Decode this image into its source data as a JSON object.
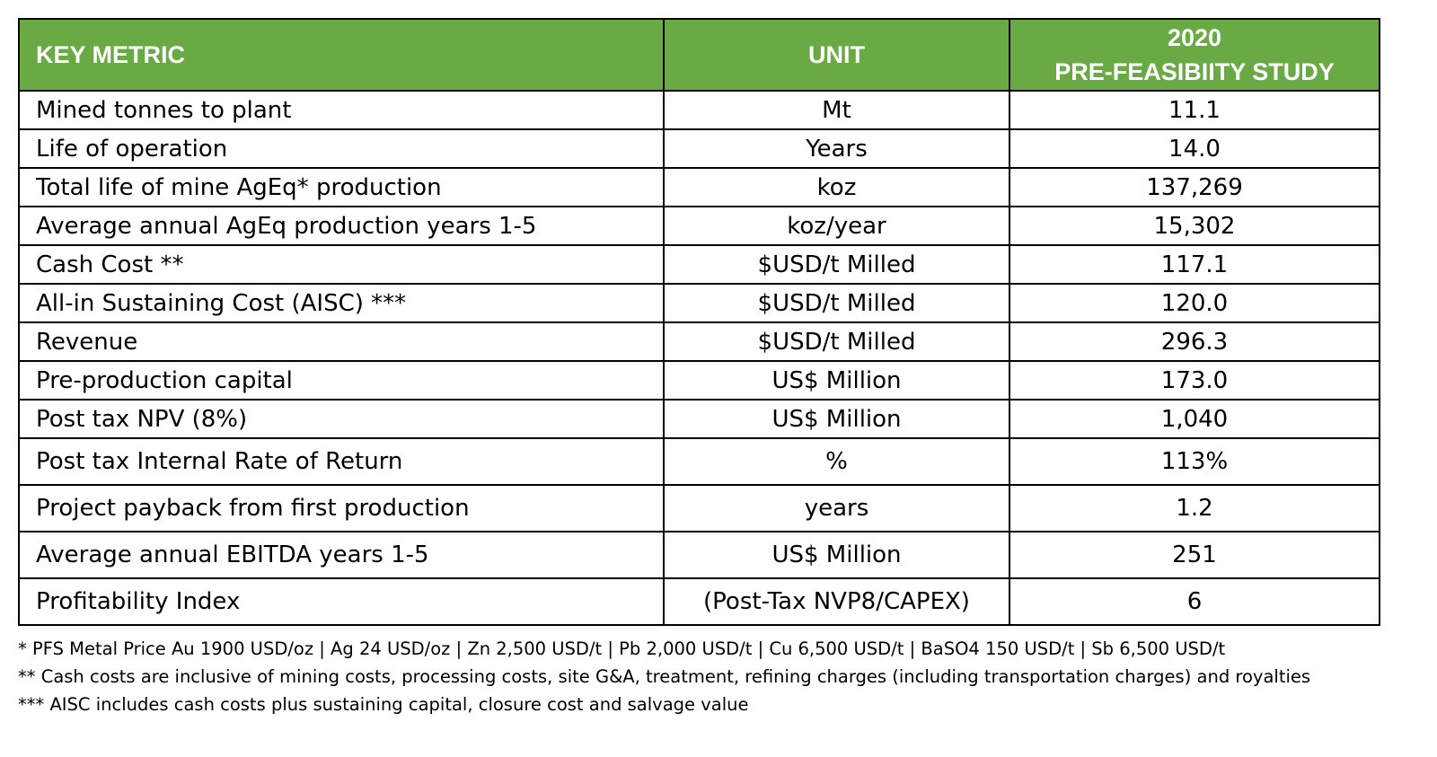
{
  "table": {
    "headers": {
      "metric": "KEY METRIC",
      "unit": "UNIT",
      "study_year": "2020",
      "study_name": "PRE-FEASIBIITY STUDY"
    },
    "rows": [
      {
        "metric": "Mined tonnes to plant",
        "unit": "Mt",
        "value": "11.1"
      },
      {
        "metric": "Life of operation",
        "unit": "Years",
        "value": "14.0"
      },
      {
        "metric": "Total life of mine AgEq* production",
        "unit": "koz",
        "value": "137,269"
      },
      {
        "metric": "Average annual AgEq production years 1-5",
        "unit": "koz/year",
        "value": "15,302"
      },
      {
        "metric": "Cash Cost **",
        "unit": "$USD/t Milled",
        "value": "117.1"
      },
      {
        "metric": "All-in Sustaining Cost (AISC) ***",
        "unit": "$USD/t Milled",
        "value": "120.0"
      },
      {
        "metric": "Revenue",
        "unit": "$USD/t Milled",
        "value": "296.3"
      },
      {
        "metric": "Pre-production capital",
        "unit": "US$ Million",
        "value": "173.0"
      },
      {
        "metric": "Post tax NPV (8%)",
        "unit": "US$ Million",
        "value": "1,040"
      },
      {
        "metric": "Post tax Internal Rate of Return",
        "unit": "%",
        "value": "113%"
      },
      {
        "metric": "Project payback from first production",
        "unit": "years",
        "value": "1.2"
      },
      {
        "metric": "Average annual EBITDA years 1-5",
        "unit": "US$ Million",
        "value": "251"
      },
      {
        "metric": "Profitability Index",
        "unit": "(Post-Tax NVP8/CAPEX)",
        "value": "6"
      }
    ]
  },
  "footnotes": [
    "* PFS Metal Price Au 1900 USD/oz | Ag 24 USD/oz | Zn 2,500 USD/t | Pb 2,000 USD/t | Cu 6,500 USD/t | BaSO4 150 USD/t | Sb 6,500 USD/t",
    "** Cash costs are inclusive of mining costs, processing costs, site G&A, treatment, refining charges (including transportation charges) and royalties",
    "*** AISC includes cash costs plus sustaining capital, closure cost and salvage value"
  ],
  "colors": {
    "header_background": "#6aaa45",
    "header_text": "#ffffff",
    "border": "#000000"
  }
}
